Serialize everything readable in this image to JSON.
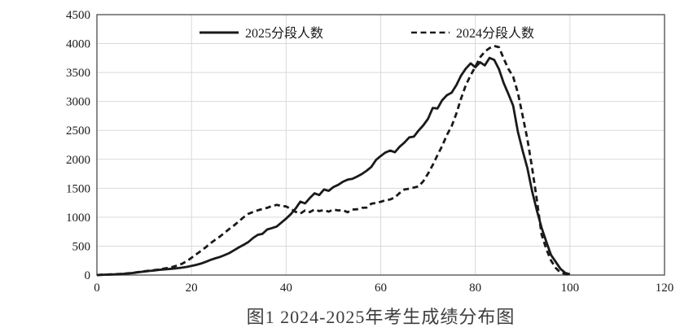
{
  "figure": {
    "caption": "图1 2024-2025年考生成绩分布图"
  },
  "chart_data": {
    "type": "line",
    "title": "",
    "xlabel": "",
    "ylabel": "",
    "xlim": [
      0,
      120
    ],
    "ylim": [
      0,
      4500
    ],
    "x_ticks": [
      0,
      20,
      40,
      60,
      80,
      100,
      120
    ],
    "y_ticks": [
      0,
      500,
      1000,
      1500,
      2000,
      2500,
      3000,
      3500,
      4000,
      4500
    ],
    "grid": true,
    "legend_position": "top-inside",
    "colors": {
      "line": "#1a1a1a",
      "grid": "#d9d9d9",
      "border": "#595959",
      "tick_label": "#1a1a1a"
    },
    "x_start": 0,
    "x_step": 1,
    "series": [
      {
        "name": "2025分段人数",
        "style": "solid",
        "color": "#1a1a1a",
        "values": [
          0,
          4,
          7,
          10,
          13,
          17,
          23,
          30,
          40,
          50,
          60,
          70,
          78,
          88,
          96,
          102,
          110,
          118,
          128,
          140,
          158,
          176,
          198,
          228,
          262,
          288,
          312,
          344,
          380,
          428,
          478,
          522,
          570,
          640,
          695,
          712,
          788,
          812,
          838,
          905,
          975,
          1052,
          1148,
          1268,
          1238,
          1330,
          1412,
          1382,
          1478,
          1455,
          1520,
          1558,
          1612,
          1648,
          1662,
          1702,
          1745,
          1802,
          1868,
          1988,
          2058,
          2118,
          2152,
          2122,
          2218,
          2288,
          2378,
          2392,
          2498,
          2588,
          2700,
          2888,
          2878,
          3022,
          3108,
          3152,
          3282,
          3448,
          3568,
          3658,
          3592,
          3678,
          3622,
          3752,
          3718,
          3558,
          3318,
          3128,
          2928,
          2478,
          2148,
          1848,
          1448,
          1118,
          818,
          578,
          348,
          228,
          108,
          38,
          12
        ]
      },
      {
        "name": "2024分段人数",
        "style": "dashed",
        "color": "#1a1a1a",
        "values": [
          0,
          4,
          8,
          11,
          15,
          19,
          26,
          34,
          44,
          54,
          64,
          74,
          84,
          94,
          108,
          124,
          140,
          164,
          196,
          240,
          298,
          358,
          418,
          480,
          548,
          608,
          665,
          730,
          798,
          858,
          928,
          998,
          1058,
          1088,
          1118,
          1142,
          1162,
          1192,
          1212,
          1196,
          1186,
          1142,
          1092,
          1062,
          1116,
          1088,
          1132,
          1106,
          1122,
          1096,
          1132,
          1116,
          1122,
          1086,
          1132,
          1136,
          1162,
          1166,
          1232,
          1246,
          1266,
          1292,
          1306,
          1342,
          1418,
          1478,
          1492,
          1512,
          1532,
          1622,
          1752,
          1902,
          2072,
          2232,
          2422,
          2572,
          2792,
          3052,
          3282,
          3452,
          3602,
          3762,
          3862,
          3922,
          3958,
          3938,
          3740,
          3560,
          3430,
          3150,
          2750,
          2350,
          1852,
          1302,
          702,
          452,
          252,
          122,
          42,
          18,
          6
        ]
      }
    ]
  }
}
